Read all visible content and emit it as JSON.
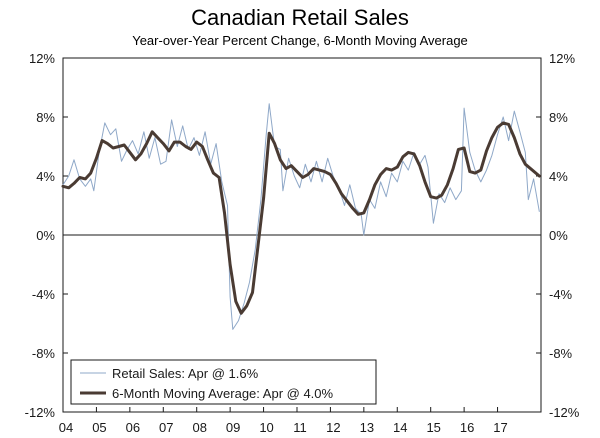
{
  "chart_data": {
    "type": "line",
    "title": "Canadian Retail Sales",
    "subtitle": "Year-over-Year Percent Change, 6-Month Moving Average",
    "xlabel": "",
    "ylabel": "",
    "x_ticks": [
      "04",
      "05",
      "06",
      "07",
      "08",
      "09",
      "10",
      "11",
      "12",
      "13",
      "14",
      "15",
      "16",
      "17"
    ],
    "y_ticks": [
      "12%",
      "8%",
      "4%",
      "0%",
      "-4%",
      "-8%",
      "-12%"
    ],
    "xlim": [
      2004.0,
      2018.3
    ],
    "ylim": [
      -12,
      12
    ],
    "grid": false,
    "legend_position": "bottom-left",
    "series": [
      {
        "name": "Retail Sales: Apr @ 1.6%",
        "color": "#8fa8c8",
        "width": 1,
        "points": [
          [
            2004.0,
            3.4
          ],
          [
            2004.17,
            4.0
          ],
          [
            2004.33,
            5.1
          ],
          [
            2004.5,
            3.8
          ],
          [
            2004.67,
            3.3
          ],
          [
            2004.83,
            3.8
          ],
          [
            2004.92,
            3.0
          ],
          [
            2005.08,
            5.6
          ],
          [
            2005.25,
            7.6
          ],
          [
            2005.42,
            6.8
          ],
          [
            2005.58,
            7.2
          ],
          [
            2005.75,
            5.0
          ],
          [
            2005.92,
            5.8
          ],
          [
            2006.08,
            6.4
          ],
          [
            2006.25,
            5.5
          ],
          [
            2006.42,
            7.0
          ],
          [
            2006.58,
            5.2
          ],
          [
            2006.75,
            6.6
          ],
          [
            2006.92,
            4.8
          ],
          [
            2007.08,
            5.0
          ],
          [
            2007.25,
            7.8
          ],
          [
            2007.42,
            6.0
          ],
          [
            2007.58,
            7.4
          ],
          [
            2007.75,
            5.8
          ],
          [
            2007.92,
            6.6
          ],
          [
            2008.08,
            5.4
          ],
          [
            2008.25,
            7.0
          ],
          [
            2008.42,
            4.8
          ],
          [
            2008.58,
            6.2
          ],
          [
            2008.75,
            3.6
          ],
          [
            2008.92,
            2.0
          ],
          [
            2009.0,
            -4.2
          ],
          [
            2009.08,
            -6.4
          ],
          [
            2009.25,
            -5.8
          ],
          [
            2009.42,
            -4.6
          ],
          [
            2009.58,
            -3.2
          ],
          [
            2009.75,
            -1.0
          ],
          [
            2009.92,
            2.4
          ],
          [
            2010.08,
            6.8
          ],
          [
            2010.17,
            8.9
          ],
          [
            2010.33,
            6.0
          ],
          [
            2010.5,
            5.8
          ],
          [
            2010.58,
            3.0
          ],
          [
            2010.75,
            5.2
          ],
          [
            2010.92,
            4.0
          ],
          [
            2011.08,
            3.2
          ],
          [
            2011.25,
            4.8
          ],
          [
            2011.42,
            3.6
          ],
          [
            2011.58,
            5.0
          ],
          [
            2011.75,
            3.6
          ],
          [
            2011.92,
            5.2
          ],
          [
            2012.08,
            4.0
          ],
          [
            2012.25,
            3.2
          ],
          [
            2012.42,
            2.0
          ],
          [
            2012.58,
            3.4
          ],
          [
            2012.75,
            1.8
          ],
          [
            2012.92,
            1.4
          ],
          [
            2013.0,
            0.0
          ],
          [
            2013.17,
            2.4
          ],
          [
            2013.33,
            1.8
          ],
          [
            2013.5,
            3.6
          ],
          [
            2013.67,
            2.6
          ],
          [
            2013.83,
            4.2
          ],
          [
            2014.0,
            3.6
          ],
          [
            2014.17,
            5.0
          ],
          [
            2014.33,
            4.4
          ],
          [
            2014.5,
            5.6
          ],
          [
            2014.67,
            4.8
          ],
          [
            2014.83,
            5.4
          ],
          [
            2014.92,
            4.6
          ],
          [
            2015.08,
            0.8
          ],
          [
            2015.25,
            2.8
          ],
          [
            2015.42,
            2.2
          ],
          [
            2015.58,
            3.2
          ],
          [
            2015.75,
            2.4
          ],
          [
            2015.92,
            3.0
          ],
          [
            2016.0,
            8.6
          ],
          [
            2016.17,
            5.6
          ],
          [
            2016.33,
            4.4
          ],
          [
            2016.5,
            3.6
          ],
          [
            2016.67,
            4.4
          ],
          [
            2016.83,
            5.4
          ],
          [
            2017.0,
            6.8
          ],
          [
            2017.17,
            8.0
          ],
          [
            2017.33,
            6.4
          ],
          [
            2017.5,
            8.4
          ],
          [
            2017.67,
            7.0
          ],
          [
            2017.83,
            5.6
          ],
          [
            2017.92,
            2.4
          ],
          [
            2018.08,
            3.8
          ],
          [
            2018.25,
            1.6
          ]
        ]
      },
      {
        "name": "6-Month Moving Average: Apr @ 4.0%",
        "color": "#4a3b33",
        "width": 3,
        "points": [
          [
            2004.0,
            3.3
          ],
          [
            2004.17,
            3.2
          ],
          [
            2004.33,
            3.5
          ],
          [
            2004.5,
            3.9
          ],
          [
            2004.67,
            3.8
          ],
          [
            2004.83,
            4.2
          ],
          [
            2005.0,
            5.2
          ],
          [
            2005.17,
            6.4
          ],
          [
            2005.33,
            6.2
          ],
          [
            2005.5,
            5.9
          ],
          [
            2005.67,
            6.0
          ],
          [
            2005.83,
            6.1
          ],
          [
            2006.0,
            5.6
          ],
          [
            2006.17,
            5.1
          ],
          [
            2006.33,
            5.5
          ],
          [
            2006.5,
            6.2
          ],
          [
            2006.67,
            7.0
          ],
          [
            2006.83,
            6.6
          ],
          [
            2007.0,
            6.2
          ],
          [
            2007.17,
            5.7
          ],
          [
            2007.33,
            6.3
          ],
          [
            2007.5,
            6.3
          ],
          [
            2007.67,
            6.0
          ],
          [
            2007.83,
            5.8
          ],
          [
            2008.0,
            6.3
          ],
          [
            2008.17,
            6.0
          ],
          [
            2008.33,
            5.1
          ],
          [
            2008.5,
            4.2
          ],
          [
            2008.67,
            3.9
          ],
          [
            2008.83,
            1.5
          ],
          [
            2009.0,
            -2.0
          ],
          [
            2009.17,
            -4.5
          ],
          [
            2009.33,
            -5.3
          ],
          [
            2009.5,
            -4.8
          ],
          [
            2009.67,
            -3.9
          ],
          [
            2009.83,
            -0.8
          ],
          [
            2010.0,
            2.5
          ],
          [
            2010.17,
            6.9
          ],
          [
            2010.33,
            6.2
          ],
          [
            2010.5,
            5.1
          ],
          [
            2010.67,
            4.5
          ],
          [
            2010.83,
            4.7
          ],
          [
            2011.0,
            4.3
          ],
          [
            2011.17,
            3.9
          ],
          [
            2011.33,
            4.1
          ],
          [
            2011.5,
            4.5
          ],
          [
            2011.67,
            4.4
          ],
          [
            2011.83,
            4.3
          ],
          [
            2012.0,
            4.1
          ],
          [
            2012.17,
            3.5
          ],
          [
            2012.33,
            2.8
          ],
          [
            2012.5,
            2.3
          ],
          [
            2012.67,
            1.8
          ],
          [
            2012.83,
            1.4
          ],
          [
            2013.0,
            1.5
          ],
          [
            2013.17,
            2.4
          ],
          [
            2013.33,
            3.4
          ],
          [
            2013.5,
            4.1
          ],
          [
            2013.67,
            4.5
          ],
          [
            2013.83,
            4.4
          ],
          [
            2014.0,
            4.6
          ],
          [
            2014.17,
            5.3
          ],
          [
            2014.33,
            5.6
          ],
          [
            2014.5,
            5.5
          ],
          [
            2014.67,
            4.7
          ],
          [
            2014.83,
            3.6
          ],
          [
            2015.0,
            2.6
          ],
          [
            2015.17,
            2.5
          ],
          [
            2015.33,
            2.7
          ],
          [
            2015.5,
            3.4
          ],
          [
            2015.67,
            4.5
          ],
          [
            2015.83,
            5.8
          ],
          [
            2016.0,
            5.9
          ],
          [
            2016.17,
            4.3
          ],
          [
            2016.33,
            4.2
          ],
          [
            2016.5,
            4.4
          ],
          [
            2016.67,
            5.7
          ],
          [
            2016.83,
            6.6
          ],
          [
            2017.0,
            7.3
          ],
          [
            2017.17,
            7.6
          ],
          [
            2017.33,
            7.5
          ],
          [
            2017.5,
            6.6
          ],
          [
            2017.67,
            5.5
          ],
          [
            2017.83,
            4.8
          ],
          [
            2018.25,
            4.0
          ]
        ]
      }
    ]
  }
}
